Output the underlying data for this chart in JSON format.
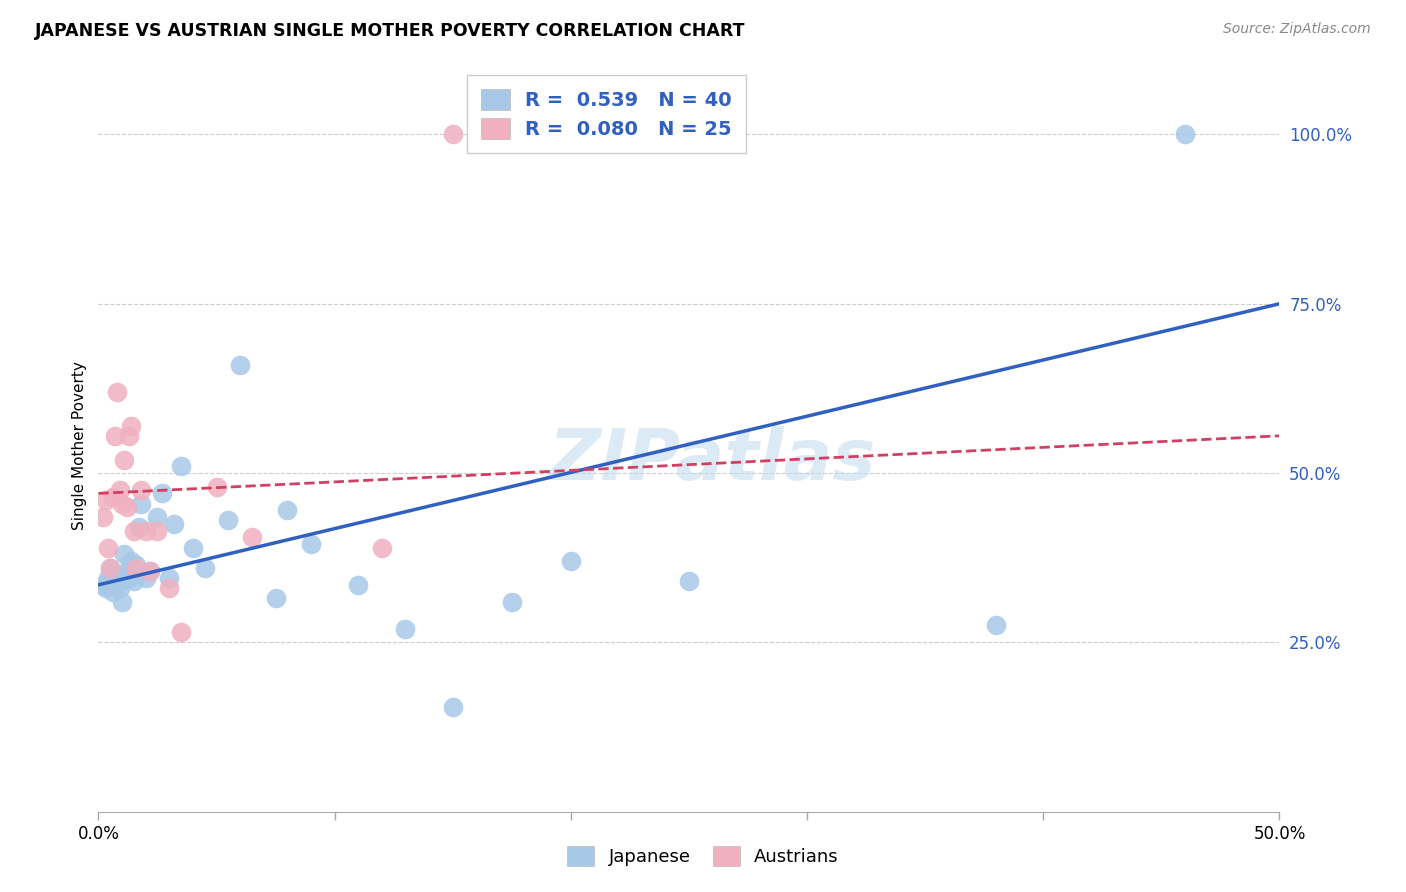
{
  "title": "JAPANESE VS AUSTRIAN SINGLE MOTHER POVERTY CORRELATION CHART",
  "source": "Source: ZipAtlas.com",
  "ylabel": "Single Mother Poverty",
  "ytick_labels": [
    "25.0%",
    "50.0%",
    "75.0%",
    "100.0%"
  ],
  "ytick_values": [
    0.25,
    0.5,
    0.75,
    1.0
  ],
  "xlim": [
    0.0,
    0.5
  ],
  "ylim": [
    0.0,
    1.08
  ],
  "legend_R_blue": "R =  0.539",
  "legend_N_blue": "N = 40",
  "legend_R_pink": "R =  0.080",
  "legend_N_pink": "N = 25",
  "blue_scatter_color": "#a8c8e8",
  "pink_scatter_color": "#f0b0c0",
  "blue_line_color": "#3060c0",
  "pink_line_color": "#d04060",
  "blue_text_color": "#3060c0",
  "watermark_color": "#c5ddf0",
  "watermark_text": "ZIPatlas",
  "japanese_x": [
    0.002,
    0.003,
    0.004,
    0.005,
    0.006,
    0.007,
    0.008,
    0.009,
    0.01,
    0.01,
    0.011,
    0.012,
    0.013,
    0.014,
    0.015,
    0.016,
    0.017,
    0.018,
    0.02,
    0.022,
    0.025,
    0.027,
    0.03,
    0.032,
    0.035,
    0.04,
    0.045,
    0.055,
    0.06,
    0.075,
    0.08,
    0.09,
    0.11,
    0.13,
    0.15,
    0.175,
    0.2,
    0.25,
    0.38,
    0.46
  ],
  "japanese_y": [
    0.335,
    0.33,
    0.345,
    0.36,
    0.325,
    0.34,
    0.35,
    0.33,
    0.31,
    0.34,
    0.38,
    0.355,
    0.345,
    0.37,
    0.34,
    0.365,
    0.42,
    0.455,
    0.345,
    0.355,
    0.435,
    0.47,
    0.345,
    0.425,
    0.51,
    0.39,
    0.36,
    0.43,
    0.66,
    0.315,
    0.445,
    0.395,
    0.335,
    0.27,
    0.155,
    0.31,
    0.37,
    0.34,
    0.275,
    1.0
  ],
  "austrian_x": [
    0.002,
    0.003,
    0.004,
    0.005,
    0.006,
    0.007,
    0.008,
    0.009,
    0.01,
    0.011,
    0.012,
    0.013,
    0.014,
    0.015,
    0.016,
    0.018,
    0.02,
    0.022,
    0.025,
    0.03,
    0.035,
    0.05,
    0.065,
    0.12,
    0.15
  ],
  "austrian_y": [
    0.435,
    0.46,
    0.39,
    0.36,
    0.465,
    0.555,
    0.62,
    0.475,
    0.455,
    0.52,
    0.45,
    0.555,
    0.57,
    0.415,
    0.36,
    0.475,
    0.415,
    0.355,
    0.415,
    0.33,
    0.265,
    0.48,
    0.405,
    0.39,
    1.0
  ],
  "jp_line_x0": 0.0,
  "jp_line_y0": 0.335,
  "jp_line_x1": 0.5,
  "jp_line_y1": 0.75,
  "at_line_x0": 0.0,
  "at_line_y0": 0.47,
  "at_line_x1": 0.5,
  "at_line_y1": 0.555
}
